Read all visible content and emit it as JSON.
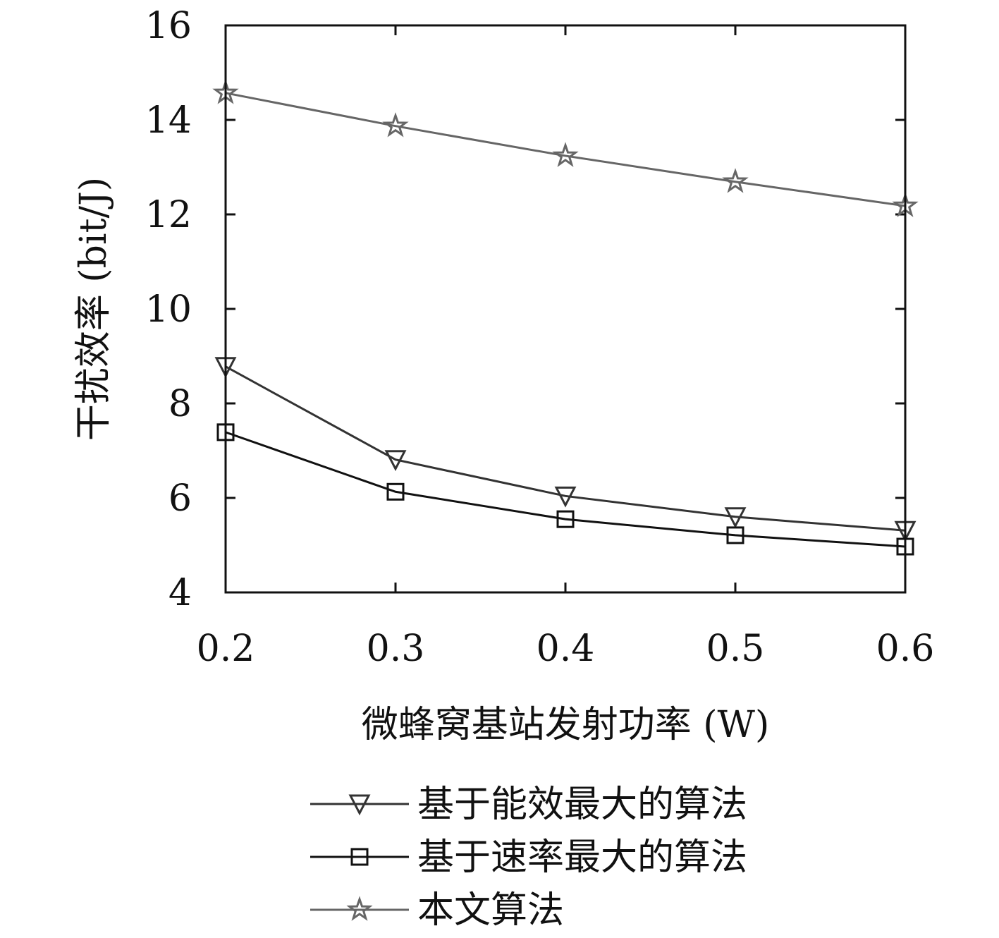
{
  "chart_data": {
    "type": "line",
    "title": "",
    "xlabel": "微蜂窝基站发射功率 (W)",
    "ylabel": "干扰效率 (bit/J)",
    "x": [
      0.2,
      0.3,
      0.4,
      0.5,
      0.6
    ],
    "xticks": [
      "0.2",
      "0.3",
      "0.4",
      "0.5",
      "0.6"
    ],
    "yticks": [
      "4",
      "6",
      "8",
      "10",
      "12",
      "14",
      "16"
    ],
    "xlim": [
      0.2,
      0.6
    ],
    "ylim": [
      4,
      16
    ],
    "grid": false,
    "legend_position": "bottom",
    "series": [
      {
        "name": "基于能效最大的算法",
        "marker": "triangle-down",
        "color": "#333333",
        "values": [
          8.78,
          6.81,
          6.04,
          5.6,
          5.31
        ]
      },
      {
        "name": "基于速率最大的算法",
        "marker": "square",
        "color": "#111111",
        "values": [
          7.39,
          6.13,
          5.55,
          5.21,
          4.97
        ]
      },
      {
        "name": "本文算法",
        "marker": "star",
        "color": "#666666",
        "values": [
          14.57,
          13.87,
          13.24,
          12.69,
          12.18
        ]
      }
    ]
  }
}
